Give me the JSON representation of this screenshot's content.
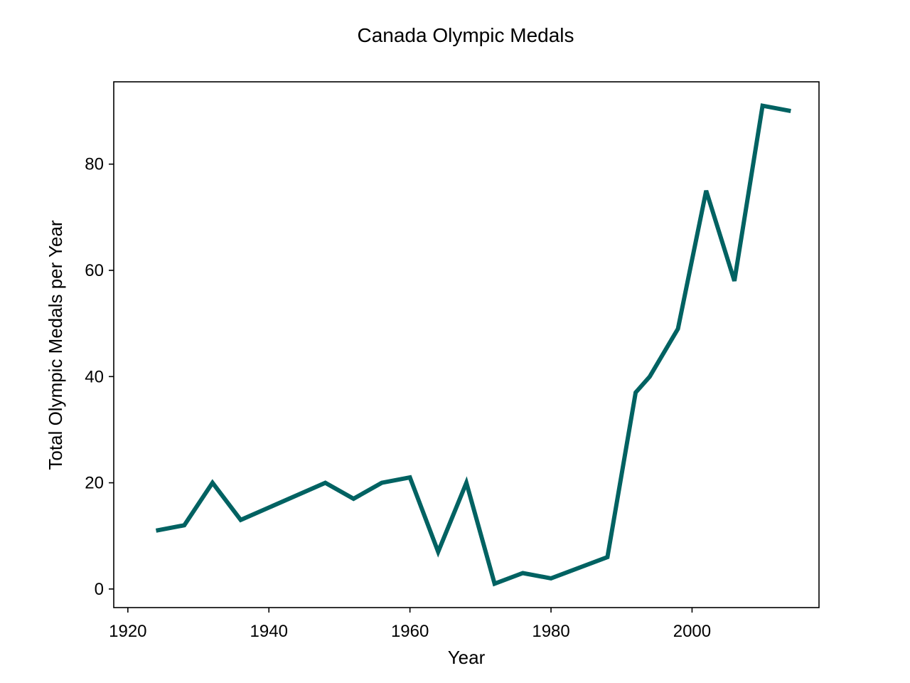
{
  "chart_data": {
    "type": "line",
    "title": "Canada Olympic Medals",
    "xlabel": "Year",
    "ylabel": "Total Olympic Medals per Year",
    "xlim": [
      1918,
      2018
    ],
    "ylim": [
      -3.5,
      95.5
    ],
    "xticks": [
      1920,
      1940,
      1960,
      1980,
      2000
    ],
    "yticks": [
      0,
      20,
      40,
      60,
      80
    ],
    "grid": false,
    "legend": "none",
    "line_color": "#006262",
    "series": [
      {
        "x": [
          1924,
          1928,
          1932,
          1936,
          1948,
          1952,
          1956,
          1960,
          1964,
          1968,
          1972,
          1976,
          1980,
          1988,
          1992,
          1994,
          1998,
          2002,
          2006,
          2010,
          2014
        ],
        "values": [
          11,
          12,
          20,
          13,
          20,
          17,
          20,
          21,
          7,
          20,
          1,
          3,
          2,
          6,
          37,
          40,
          49,
          75,
          58,
          91,
          90
        ]
      }
    ]
  }
}
